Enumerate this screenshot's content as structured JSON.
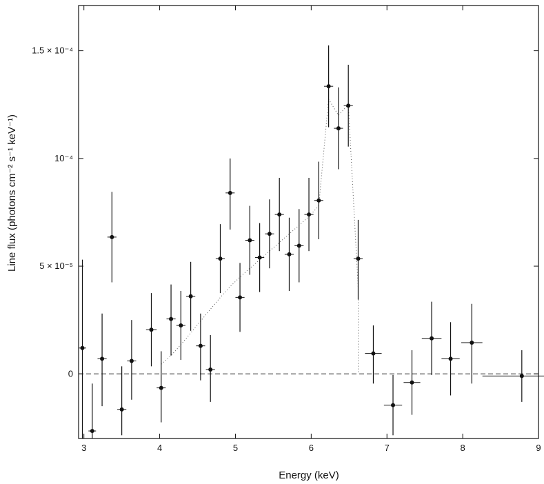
{
  "chart_data": {
    "type": "scatter",
    "xlabel": "Energy (keV)",
    "ylabel": "Line flux (photons cm⁻² s⁻¹ keV⁻¹)",
    "xlim": [
      2.93,
      9.0
    ],
    "ylim": [
      -3e-05,
      0.000171
    ],
    "x_ticks": [
      {
        "value": 3,
        "label": "3"
      },
      {
        "value": 4,
        "label": "4"
      },
      {
        "value": 5,
        "label": "5"
      },
      {
        "value": 6,
        "label": "6"
      },
      {
        "value": 7,
        "label": "7"
      },
      {
        "value": 8,
        "label": "8"
      },
      {
        "value": 9,
        "label": "9"
      }
    ],
    "y_ticks": [
      {
        "value": 0,
        "label": "0"
      },
      {
        "value": 5e-05,
        "label": "5 × 10⁻⁵"
      },
      {
        "value": 0.0001,
        "label": "10⁻⁴"
      },
      {
        "value": 0.00015,
        "label": "1.5 × 10⁻⁴"
      }
    ],
    "zero_line": true,
    "series": [
      {
        "style": "points-with-error-bars",
        "points": [
          {
            "x": 2.98,
            "y": 1.2e-05,
            "xerr": 0.05,
            "yerr_lo": 4.5e-05,
            "yerr_hi": 4.1e-05
          },
          {
            "x": 3.11,
            "y": -2.65e-05,
            "xerr": 0.05,
            "yerr_lo": 1e-05,
            "yerr_hi": 2.2e-05
          },
          {
            "x": 3.24,
            "y": 7e-06,
            "xerr": 0.06,
            "yerr_lo": 2.2e-05,
            "yerr_hi": 2.1e-05
          },
          {
            "x": 3.37,
            "y": 6.35e-05,
            "xerr": 0.06,
            "yerr_lo": 2.1e-05,
            "yerr_hi": 2.1e-05
          },
          {
            "x": 3.5,
            "y": -1.65e-05,
            "xerr": 0.06,
            "yerr_lo": 1.2e-05,
            "yerr_hi": 2e-05
          },
          {
            "x": 3.63,
            "y": 6e-06,
            "xerr": 0.06,
            "yerr_lo": 1.8e-05,
            "yerr_hi": 1.9e-05
          },
          {
            "x": 3.89,
            "y": 2.05e-05,
            "xerr": 0.07,
            "yerr_lo": 1.7e-05,
            "yerr_hi": 1.7e-05
          },
          {
            "x": 4.02,
            "y": -6.5e-06,
            "xerr": 0.06,
            "yerr_lo": 1.6e-05,
            "yerr_hi": 1.7e-05
          },
          {
            "x": 4.15,
            "y": 2.55e-05,
            "xerr": 0.06,
            "yerr_lo": 1.7e-05,
            "yerr_hi": 1.6e-05
          },
          {
            "x": 4.28,
            "y": 2.25e-05,
            "xerr": 0.06,
            "yerr_lo": 1.6e-05,
            "yerr_hi": 1.6e-05
          },
          {
            "x": 4.41,
            "y": 3.6e-05,
            "xerr": 0.06,
            "yerr_lo": 1.6e-05,
            "yerr_hi": 1.6e-05
          },
          {
            "x": 4.54,
            "y": 1.3e-05,
            "xerr": 0.06,
            "yerr_lo": 1.6e-05,
            "yerr_hi": 1.5e-05
          },
          {
            "x": 4.67,
            "y": 2e-06,
            "xerr": 0.06,
            "yerr_lo": 1.5e-05,
            "yerr_hi": 1.6e-05
          },
          {
            "x": 4.8,
            "y": 5.35e-05,
            "xerr": 0.06,
            "yerr_lo": 1.6e-05,
            "yerr_hi": 1.6e-05
          },
          {
            "x": 4.93,
            "y": 8.4e-05,
            "xerr": 0.06,
            "yerr_lo": 1.7e-05,
            "yerr_hi": 1.6e-05
          },
          {
            "x": 5.06,
            "y": 3.55e-05,
            "xerr": 0.06,
            "yerr_lo": 1.6e-05,
            "yerr_hi": 1.6e-05
          },
          {
            "x": 5.19,
            "y": 6.2e-05,
            "xerr": 0.06,
            "yerr_lo": 1.6e-05,
            "yerr_hi": 1.6e-05
          },
          {
            "x": 5.32,
            "y": 5.4e-05,
            "xerr": 0.06,
            "yerr_lo": 1.6e-05,
            "yerr_hi": 1.6e-05
          },
          {
            "x": 5.45,
            "y": 6.5e-05,
            "xerr": 0.06,
            "yerr_lo": 1.6e-05,
            "yerr_hi": 1.6e-05
          },
          {
            "x": 5.58,
            "y": 7.4e-05,
            "xerr": 0.06,
            "yerr_lo": 1.7e-05,
            "yerr_hi": 1.7e-05
          },
          {
            "x": 5.71,
            "y": 5.55e-05,
            "xerr": 0.06,
            "yerr_lo": 1.7e-05,
            "yerr_hi": 1.7e-05
          },
          {
            "x": 5.84,
            "y": 5.95e-05,
            "xerr": 0.06,
            "yerr_lo": 1.7e-05,
            "yerr_hi": 1.7e-05
          },
          {
            "x": 5.97,
            "y": 7.4e-05,
            "xerr": 0.06,
            "yerr_lo": 1.7e-05,
            "yerr_hi": 1.7e-05
          },
          {
            "x": 6.1,
            "y": 8.05e-05,
            "xerr": 0.06,
            "yerr_lo": 1.8e-05,
            "yerr_hi": 1.8e-05
          },
          {
            "x": 6.23,
            "y": 0.0001335,
            "xerr": 0.06,
            "yerr_lo": 1.9e-05,
            "yerr_hi": 1.9e-05
          },
          {
            "x": 6.36,
            "y": 0.000114,
            "xerr": 0.06,
            "yerr_lo": 1.9e-05,
            "yerr_hi": 1.9e-05
          },
          {
            "x": 6.49,
            "y": 0.0001245,
            "xerr": 0.06,
            "yerr_lo": 1.9e-05,
            "yerr_hi": 1.9e-05
          },
          {
            "x": 6.62,
            "y": 5.35e-05,
            "xerr": 0.06,
            "yerr_lo": 1.9e-05,
            "yerr_hi": 1.8e-05
          },
          {
            "x": 6.82,
            "y": 9.5e-06,
            "xerr": 0.11,
            "yerr_lo": 1.4e-05,
            "yerr_hi": 1.3e-05
          },
          {
            "x": 7.08,
            "y": -1.45e-05,
            "xerr": 0.12,
            "yerr_lo": 1.4e-05,
            "yerr_hi": 1.4e-05
          },
          {
            "x": 7.33,
            "y": -4e-06,
            "xerr": 0.11,
            "yerr_lo": 1.5e-05,
            "yerr_hi": 1.5e-05
          },
          {
            "x": 7.59,
            "y": 1.65e-05,
            "xerr": 0.13,
            "yerr_lo": 1.7e-05,
            "yerr_hi": 1.7e-05
          },
          {
            "x": 7.84,
            "y": 7e-06,
            "xerr": 0.12,
            "yerr_lo": 1.7e-05,
            "yerr_hi": 1.7e-05
          },
          {
            "x": 8.12,
            "y": 1.45e-05,
            "xerr": 0.14,
            "yerr_lo": 1.9e-05,
            "yerr_hi": 1.8e-05
          },
          {
            "x": 8.78,
            "y": -1e-06,
            "xerr": 0.52,
            "yerr_lo": 1.2e-05,
            "yerr_hi": 1.2e-05
          }
        ]
      },
      {
        "style": "dotted-line",
        "x": [
          4.02,
          4.15,
          4.28,
          4.41,
          4.54,
          4.67,
          4.8,
          4.93,
          5.06,
          5.19,
          5.32,
          5.45,
          5.58,
          5.71,
          5.84,
          5.97,
          6.1,
          6.23,
          6.36,
          6.49,
          6.62,
          6.62
        ],
        "y": [
          4.5e-06,
          8.5e-06,
          1.35e-05,
          1.9e-05,
          2.45e-05,
          3e-05,
          3.55e-05,
          4.05e-05,
          4.5e-05,
          4.9e-05,
          5.3e-05,
          5.7e-05,
          6.1e-05,
          6.5e-05,
          6.9e-05,
          7.3e-05,
          7.8e-05,
          0.0001275,
          0.00012,
          0.000125,
          4e-05,
          0.0
        ]
      }
    ]
  }
}
